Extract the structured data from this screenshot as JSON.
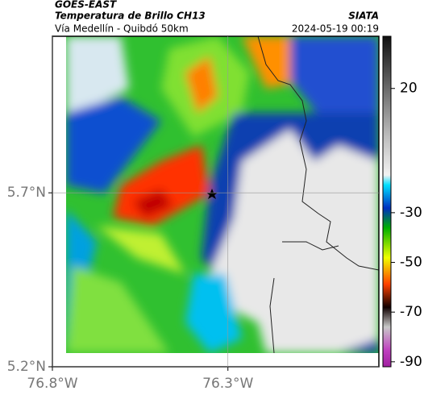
{
  "header": {
    "source": "GOES-EAST",
    "title": "Temperatura de Brillo CH13",
    "org": "SIATA",
    "subtitle": "Vía Medellín - Quibdó 50km",
    "timestamp": "2024-05-19 00:19"
  },
  "map": {
    "xlim": [
      -76.8,
      -75.87
    ],
    "ylim": [
      5.2,
      6.15
    ],
    "xticks": [
      {
        "value": -76.8,
        "label": "76.8°W"
      },
      {
        "value": -76.3,
        "label": "76.3°W"
      }
    ],
    "yticks": [
      {
        "value": 5.7,
        "label": "5.7°N"
      },
      {
        "value": 5.2,
        "label": "5.2°N"
      }
    ]
  },
  "colorbar": {
    "lim": [
      -92,
      41
    ],
    "ticks": [
      20,
      -30,
      -50,
      -70,
      -90
    ]
  }
}
